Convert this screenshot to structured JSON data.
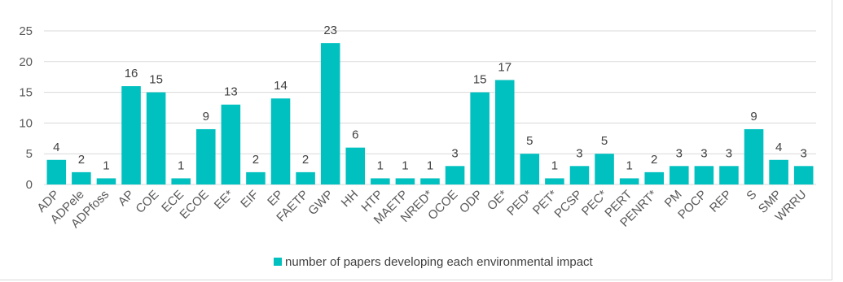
{
  "chart_data": {
    "type": "bar",
    "categories": [
      "ADP",
      "ADPele",
      "ADPfoss",
      "AP",
      "COE",
      "ECE",
      "ECOE",
      "EE*",
      "EIF",
      "EP",
      "FAETP",
      "GWP",
      "HH",
      "HTP",
      "MAETP",
      "NRED*",
      "OCOE",
      "ODP",
      "OE*",
      "PED*",
      "PET*",
      "PCSP",
      "PEC*",
      "PERT",
      "PENRT*",
      "PM",
      "POCP",
      "REP",
      "S",
      "SMP",
      "WRRU"
    ],
    "series": [
      {
        "name": "number of papers developing each environmental impact",
        "values": [
          4,
          2,
          1,
          16,
          15,
          1,
          9,
          13,
          2,
          14,
          2,
          23,
          6,
          1,
          1,
          1,
          3,
          15,
          17,
          5,
          1,
          3,
          5,
          1,
          2,
          3,
          3,
          3,
          9,
          4,
          3
        ]
      }
    ],
    "ylim": [
      0,
      25
    ],
    "yticks": [
      0,
      5,
      10,
      15,
      20,
      25
    ],
    "grid": true,
    "legend_position": "bottom",
    "bar_color": "#00c0c0",
    "grid_color": "#d9d9d9"
  }
}
